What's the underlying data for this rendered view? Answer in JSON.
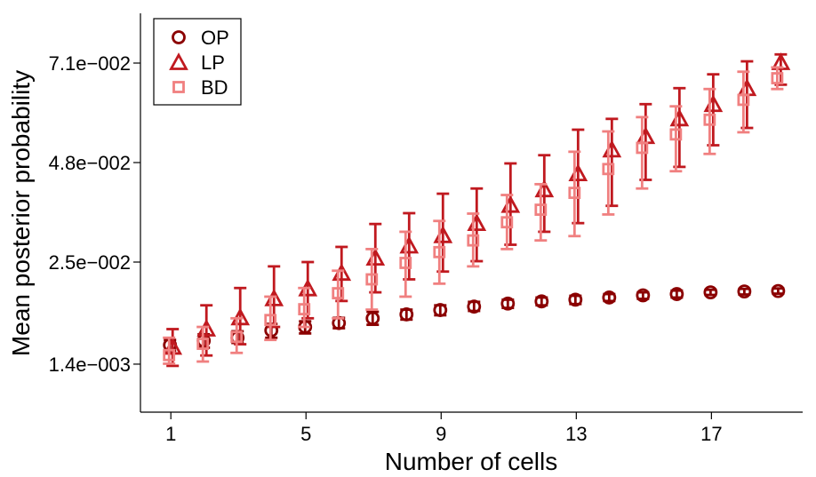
{
  "chart_data": {
    "type": "scatter",
    "title": "",
    "xlabel": "Number of cells",
    "ylabel": "Mean posterior probability",
    "xlim": [
      0.1,
      19.7
    ],
    "ylim": [
      -0.0097,
      0.0825
    ],
    "xticks": [
      1,
      5,
      9,
      13,
      17
    ],
    "xtick_labels": [
      "1",
      "5",
      "9",
      "13",
      "17"
    ],
    "yticks": [
      0.0014,
      0.025,
      0.048,
      0.071
    ],
    "ytick_labels": [
      "1.4e−003",
      "2.5e−002",
      "4.8e−002",
      "7.1e−002"
    ],
    "legend": {
      "position": "top-left",
      "entries": [
        "OP",
        "LP",
        "BD"
      ]
    },
    "series": [
      {
        "name": "OP",
        "marker": "circle",
        "color": "#8b0000",
        "x": [
          1,
          2,
          3,
          4,
          5,
          6,
          7,
          8,
          9,
          10,
          11,
          12,
          13,
          14,
          15,
          16,
          17,
          18,
          19
        ],
        "y": [
          0.0058,
          0.0068,
          0.0075,
          0.0092,
          0.01,
          0.0109,
          0.012,
          0.0129,
          0.0139,
          0.0147,
          0.0154,
          0.0159,
          0.0163,
          0.0168,
          0.0173,
          0.0176,
          0.018,
          0.0182,
          0.0183
        ],
        "lo": [
          0.0045,
          0.0052,
          0.0063,
          0.0075,
          0.0085,
          0.0097,
          0.0105,
          0.0117,
          0.0127,
          0.0137,
          0.0144,
          0.015,
          0.0153,
          0.016,
          0.0165,
          0.0168,
          0.0174,
          0.0175,
          0.0177
        ],
        "hi": [
          0.007,
          0.0083,
          0.009,
          0.0107,
          0.0113,
          0.0121,
          0.0135,
          0.014,
          0.015,
          0.0158,
          0.0163,
          0.0168,
          0.0172,
          0.0176,
          0.018,
          0.0184,
          0.0186,
          0.0188,
          0.0189
        ]
      },
      {
        "name": "LP",
        "marker": "triangle",
        "color": "#c0191f",
        "x": [
          1,
          2,
          3,
          4,
          5,
          6,
          7,
          8,
          9,
          10,
          11,
          12,
          13,
          14,
          15,
          16,
          17,
          18,
          19
        ],
        "y": [
          0.0052,
          0.0094,
          0.012,
          0.0164,
          0.0187,
          0.0223,
          0.0258,
          0.0286,
          0.031,
          0.0338,
          0.038,
          0.0416,
          0.0453,
          0.0508,
          0.0539,
          0.058,
          0.0613,
          0.065,
          0.071
        ],
        "lo": [
          0.001,
          0.0034,
          0.006,
          0.01,
          0.012,
          0.016,
          0.018,
          0.021,
          0.0228,
          0.0252,
          0.029,
          0.032,
          0.034,
          0.038,
          0.044,
          0.047,
          0.052,
          0.056,
          0.066
        ],
        "hi": [
          0.0095,
          0.015,
          0.019,
          0.024,
          0.025,
          0.0285,
          0.0338,
          0.0363,
          0.0408,
          0.042,
          0.0478,
          0.0497,
          0.0556,
          0.0581,
          0.0615,
          0.0652,
          0.0684,
          0.0714,
          0.073
        ]
      },
      {
        "name": "BD",
        "marker": "square",
        "color": "#f08080",
        "x": [
          1,
          2,
          3,
          4,
          5,
          6,
          7,
          8,
          9,
          10,
          11,
          12,
          13,
          14,
          15,
          16,
          17,
          18,
          19
        ],
        "y": [
          0.0035,
          0.0061,
          0.0077,
          0.0116,
          0.0141,
          0.0178,
          0.021,
          0.0248,
          0.0273,
          0.03,
          0.0342,
          0.0371,
          0.041,
          0.0465,
          0.0514,
          0.0545,
          0.0579,
          0.0625,
          0.0675
        ],
        "lo": [
          0.0015,
          0.002,
          0.004,
          0.007,
          0.01,
          0.012,
          0.014,
          0.017,
          0.02,
          0.024,
          0.028,
          0.03,
          0.031,
          0.036,
          0.042,
          0.046,
          0.05,
          0.055,
          0.065
        ],
        "hi": [
          0.0075,
          0.01,
          0.012,
          0.017,
          0.019,
          0.023,
          0.028,
          0.032,
          0.0345,
          0.0362,
          0.0405,
          0.043,
          0.0505,
          0.0552,
          0.0585,
          0.061,
          0.065,
          0.069,
          0.07
        ]
      }
    ]
  }
}
